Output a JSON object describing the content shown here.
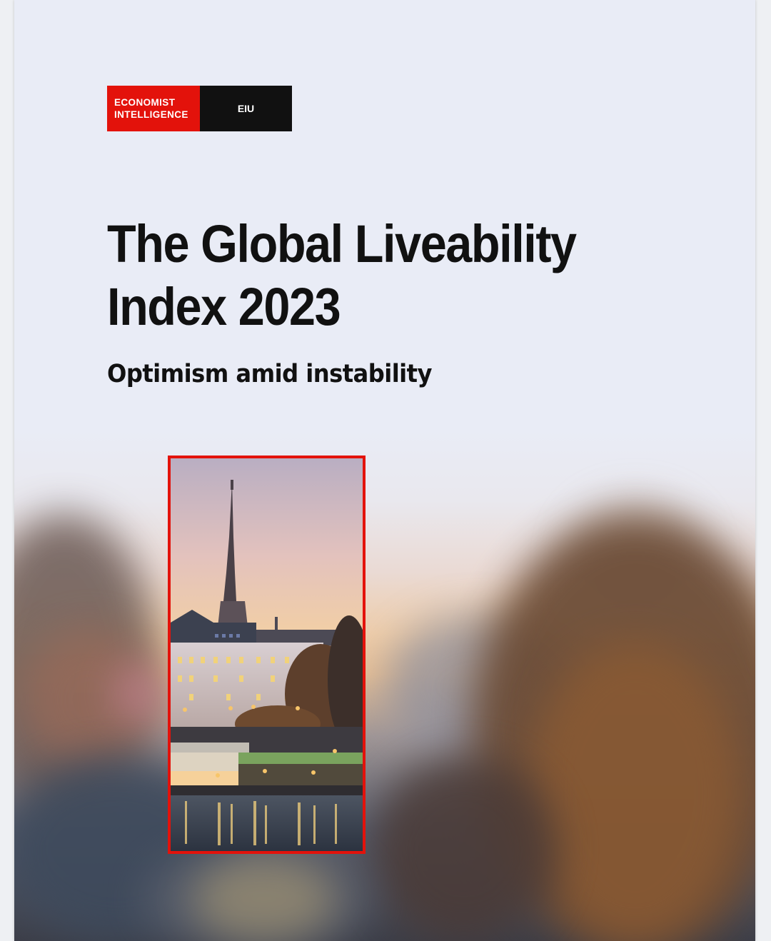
{
  "logo": {
    "brand_line1": "ECONOMIST",
    "brand_line2": "INTELLIGENCE",
    "short": "EIU",
    "colors": {
      "red": "#e3120b",
      "black": "#111111"
    }
  },
  "report": {
    "title_line1": "The Global Liveability",
    "title_line2": "Index 2023",
    "subtitle": "Optimism amid instability"
  },
  "cover_image": {
    "icon": "city-riverside-photo"
  }
}
